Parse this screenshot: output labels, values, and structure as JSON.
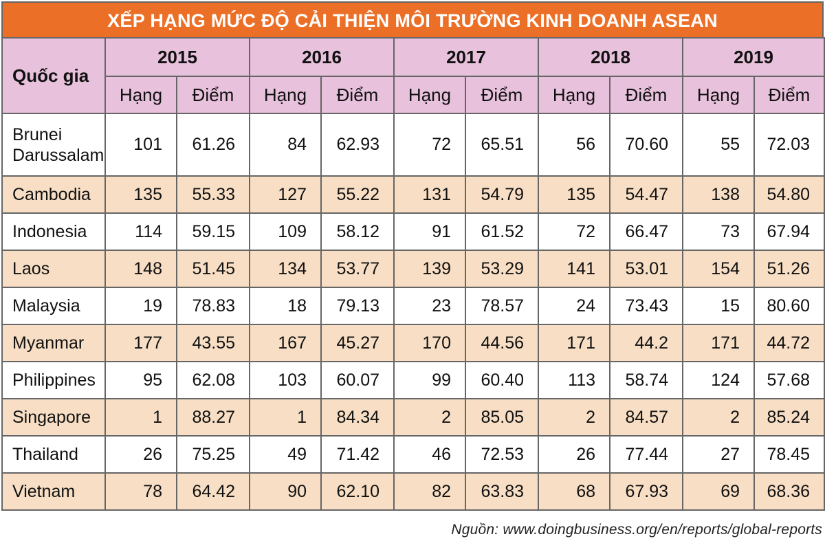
{
  "chart_data": {
    "type": "table",
    "title": "XẾP HẠNG MỨC ĐỘ CẢI THIỆN MÔI TRƯỜNG KINH DOANH ASEAN",
    "country_header": "Quốc gia",
    "years": [
      "2015",
      "2016",
      "2017",
      "2018",
      "2019"
    ],
    "sub_headers": [
      "Hạng",
      "Điểm"
    ],
    "rows": [
      {
        "country": "Brunei Darussalam",
        "cells": [
          "101",
          "61.26",
          "84",
          "62.93",
          "72",
          "65.51",
          "56",
          "70.60",
          "55",
          "72.03"
        ]
      },
      {
        "country": "Cambodia",
        "cells": [
          "135",
          "55.33",
          "127",
          "55.22",
          "131",
          "54.79",
          "135",
          "54.47",
          "138",
          "54.80"
        ]
      },
      {
        "country": "Indonesia",
        "cells": [
          "114",
          "59.15",
          "109",
          "58.12",
          "91",
          "61.52",
          "72",
          "66.47",
          "73",
          "67.94"
        ]
      },
      {
        "country": "Laos",
        "cells": [
          "148",
          "51.45",
          "134",
          "53.77",
          "139",
          "53.29",
          "141",
          "53.01",
          "154",
          "51.26"
        ]
      },
      {
        "country": "Malaysia",
        "cells": [
          "19",
          "78.83",
          "18",
          "79.13",
          "23",
          "78.57",
          "24",
          "73.43",
          "15",
          "80.60"
        ]
      },
      {
        "country": "Myanmar",
        "cells": [
          "177",
          "43.55",
          "167",
          "45.27",
          "170",
          "44.56",
          "171",
          "44.2",
          "171",
          "44.72"
        ]
      },
      {
        "country": "Philippines",
        "cells": [
          "95",
          "62.08",
          "103",
          "60.07",
          "99",
          "60.40",
          "113",
          "58.74",
          "124",
          "57.68"
        ]
      },
      {
        "country": "Singapore",
        "cells": [
          "1",
          "88.27",
          "1",
          "84.34",
          "2",
          "85.05",
          "2",
          "84.57",
          "2",
          "85.24"
        ]
      },
      {
        "country": "Thailand",
        "cells": [
          "26",
          "75.25",
          "49",
          "71.42",
          "46",
          "72.53",
          "26",
          "77.44",
          "27",
          "78.45"
        ]
      },
      {
        "country": "Vietnam",
        "cells": [
          "78",
          "64.42",
          "90",
          "62.10",
          "82",
          "63.83",
          "68",
          "67.93",
          "69",
          "68.36"
        ]
      }
    ],
    "source": "Nguồn: www.doingbusiness.org/en/reports/global-reports"
  },
  "colors": {
    "title_bg": "#ec6f27",
    "header_bg": "#e8c1dc",
    "stripe_bg": "#f7dec4",
    "row_bg": "#ffffff",
    "border": "#666666"
  }
}
